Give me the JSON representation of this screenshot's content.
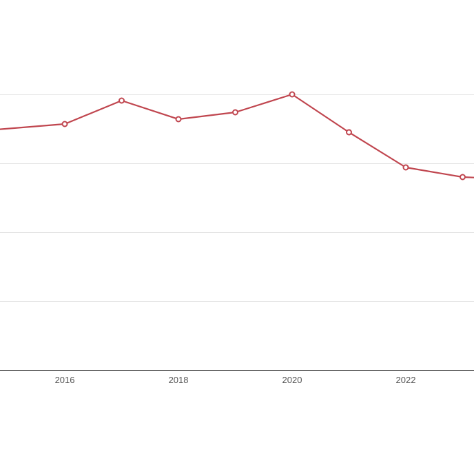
{
  "chart_data": {
    "type": "line",
    "x_ticks": [
      "2016",
      "2018",
      "2020",
      "2022"
    ],
    "series": [
      {
        "color": "#c0464f",
        "points": [
          {
            "x": 2014.8,
            "y": 3.49
          },
          {
            "x": 2016,
            "y": 3.57
          },
          {
            "x": 2017,
            "y": 3.91
          },
          {
            "x": 2018,
            "y": 3.64
          },
          {
            "x": 2019,
            "y": 3.74
          },
          {
            "x": 2020,
            "y": 4.0
          },
          {
            "x": 2021,
            "y": 3.45
          },
          {
            "x": 2022,
            "y": 2.94
          },
          {
            "x": 2023,
            "y": 2.8
          },
          {
            "x": 2023.6,
            "y": 2.78
          }
        ]
      }
    ],
    "xlim": [
      2014.86,
      2023.2
    ],
    "ylim": [
      0,
      4
    ],
    "gridlines_y": [
      1,
      2,
      3,
      4
    ],
    "grid": true,
    "legend": "none"
  }
}
